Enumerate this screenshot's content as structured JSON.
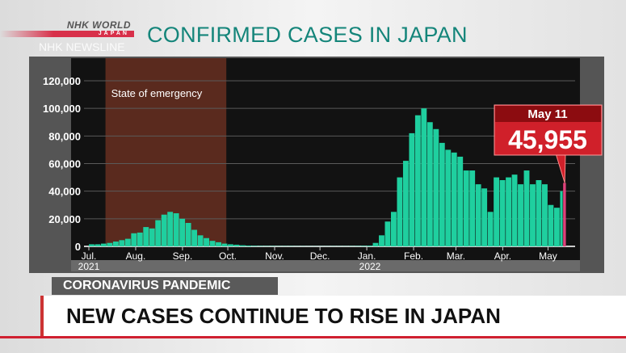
{
  "header": {
    "logo_text": "NHK WORLD JAPAN",
    "program": "NHK NEWSLINE",
    "title": "CONFIRMED CASES IN JAPAN"
  },
  "lower_third": {
    "tag": "CORONAVIRUS PANDEMIC",
    "headline": "NEW CASES CONTINUE TO RISE IN JAPAN"
  },
  "colors": {
    "bars": "#1fcf9f",
    "emergency": "#5a2a1e",
    "callout": "#d0202a",
    "title": "#14857a"
  },
  "chart_data": {
    "type": "bar",
    "title": "CONFIRMED CASES IN JAPAN",
    "ylim": [
      0,
      120000
    ],
    "yticks": [
      "0",
      "20,000",
      "40,000",
      "60,000",
      "80,000",
      "100,000",
      "120,000"
    ],
    "month_ticks": [
      [
        "2021-07-01",
        "Jul."
      ],
      [
        "2021-08-01",
        "Aug."
      ],
      [
        "2021-09-01",
        "Sep."
      ],
      [
        "2021-10-01",
        "Oct."
      ],
      [
        "2021-11-01",
        "Nov."
      ],
      [
        "2021-12-01",
        "Dec."
      ],
      [
        "2022-01-01",
        "Jan."
      ],
      [
        "2022-02-01",
        "Feb."
      ],
      [
        "2022-03-01",
        "Mar."
      ],
      [
        "2022-04-01",
        "Apr."
      ],
      [
        "2022-05-01",
        "May"
      ]
    ],
    "years": [
      "2021",
      "2022"
    ],
    "grid": true,
    "annotation_region": {
      "label": "State of emergency",
      "start": "2021-07-12",
      "end": "2021-09-30"
    },
    "callout": {
      "date_label": "May 11",
      "value_label": "45,955",
      "date": "2022-05-11",
      "value": 45955
    },
    "x": [
      "2021-07-01",
      "2021-07-05",
      "2021-07-09",
      "2021-07-13",
      "2021-07-17",
      "2021-07-21",
      "2021-07-25",
      "2021-07-29",
      "2021-08-02",
      "2021-08-06",
      "2021-08-10",
      "2021-08-14",
      "2021-08-18",
      "2021-08-22",
      "2021-08-26",
      "2021-08-30",
      "2021-09-03",
      "2021-09-07",
      "2021-09-11",
      "2021-09-15",
      "2021-09-19",
      "2021-09-23",
      "2021-09-27",
      "2021-10-01",
      "2021-10-05",
      "2021-10-09",
      "2021-10-13",
      "2021-10-17",
      "2021-10-21",
      "2021-10-25",
      "2021-10-29",
      "2021-11-02",
      "2021-11-06",
      "2021-11-10",
      "2021-11-14",
      "2021-11-18",
      "2021-11-22",
      "2021-11-26",
      "2021-11-30",
      "2021-12-04",
      "2021-12-08",
      "2021-12-12",
      "2021-12-16",
      "2021-12-20",
      "2021-12-24",
      "2021-12-28",
      "2022-01-01",
      "2022-01-05",
      "2022-01-09",
      "2022-01-13",
      "2022-01-17",
      "2022-01-21",
      "2022-01-25",
      "2022-01-29",
      "2022-02-02",
      "2022-02-06",
      "2022-02-10",
      "2022-02-14",
      "2022-02-18",
      "2022-02-22",
      "2022-02-26",
      "2022-03-02",
      "2022-03-06",
      "2022-03-10",
      "2022-03-14",
      "2022-03-18",
      "2022-03-22",
      "2022-03-26",
      "2022-03-30",
      "2022-04-03",
      "2022-04-07",
      "2022-04-11",
      "2022-04-15",
      "2022-04-19",
      "2022-04-23",
      "2022-04-27",
      "2022-05-01",
      "2022-05-05",
      "2022-05-09",
      "2022-05-11"
    ],
    "values": [
      1500,
      1500,
      2000,
      2500,
      3500,
      4500,
      5500,
      9500,
      10000,
      14000,
      13000,
      19000,
      23000,
      25000,
      24000,
      20000,
      17000,
      12000,
      8000,
      6000,
      4000,
      3000,
      2000,
      1500,
      1200,
      800,
      600,
      400,
      300,
      250,
      250,
      200,
      200,
      200,
      150,
      150,
      120,
      120,
      120,
      130,
      150,
      150,
      150,
      200,
      250,
      350,
      500,
      2500,
      8000,
      18000,
      25000,
      50000,
      62000,
      82000,
      95000,
      100000,
      90000,
      85000,
      75000,
      70000,
      68000,
      65000,
      55000,
      55000,
      45000,
      42000,
      25000,
      50000,
      48000,
      50000,
      52000,
      45000,
      55000,
      45000,
      48000,
      45000,
      30000,
      28000,
      40000,
      45955
    ]
  }
}
